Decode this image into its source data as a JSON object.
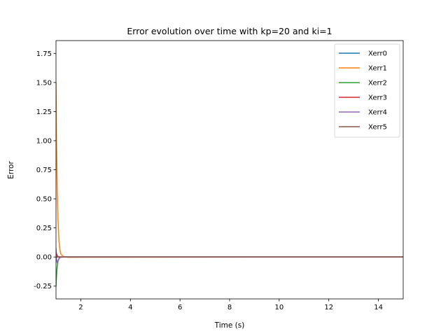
{
  "chart_data": {
    "type": "line",
    "title": "Error evolution over time with kp=20 and ki=1",
    "xlabel": "Time (s)",
    "ylabel": "Error",
    "xlim": [
      1.0,
      15.0
    ],
    "ylim": [
      -0.36,
      1.86
    ],
    "xticks": [
      2,
      4,
      6,
      8,
      10,
      12,
      14
    ],
    "yticks": [
      -0.25,
      0.0,
      0.25,
      0.5,
      0.75,
      1.0,
      1.25,
      1.5,
      1.75
    ],
    "grid": false,
    "legend_position": "top-right",
    "series": [
      {
        "name": "Xerr0",
        "color": "#1f77b4",
        "x": [
          1.0,
          1.02,
          1.05,
          1.08,
          1.12,
          1.16,
          1.2,
          1.3,
          1.5,
          2.0,
          15.0
        ],
        "y": [
          0.0,
          0.0,
          0.0,
          0.0,
          0.0,
          0.0,
          0.0,
          0.0,
          0.0,
          0.0,
          0.0
        ]
      },
      {
        "name": "Xerr1",
        "color": "#ff7f0e",
        "x": [
          1.0,
          1.02,
          1.05,
          1.08,
          1.12,
          1.16,
          1.2,
          1.3,
          1.5,
          2.0,
          15.0
        ],
        "y": [
          1.5,
          1.0,
          0.58,
          0.33,
          0.14,
          0.06,
          0.025,
          0.003,
          -0.003,
          -0.002,
          0.0
        ]
      },
      {
        "name": "Xerr2",
        "color": "#2ca02c",
        "x": [
          1.0,
          1.02,
          1.05,
          1.08,
          1.12,
          1.16,
          1.2,
          1.3,
          1.5,
          2.0,
          15.0
        ],
        "y": [
          -0.25,
          -0.16,
          -0.08,
          -0.04,
          -0.015,
          -0.006,
          -0.002,
          0.0,
          0.0,
          0.0,
          0.0
        ]
      },
      {
        "name": "Xerr3",
        "color": "#d62728",
        "x": [
          1.0,
          1.02,
          1.05,
          1.08,
          1.12,
          1.16,
          1.2,
          1.3,
          1.5,
          2.0,
          15.0
        ],
        "y": [
          0.05,
          0.03,
          0.012,
          0.005,
          0.001,
          0.0,
          0.0,
          0.0,
          0.0,
          0.0,
          0.0
        ]
      },
      {
        "name": "Xerr4",
        "color": "#9467bd",
        "x": [
          1.0,
          1.02,
          1.05,
          1.08,
          1.12,
          1.16,
          1.2,
          1.3,
          1.5,
          2.0,
          15.0
        ],
        "y": [
          0.07,
          -0.02,
          -0.05,
          -0.03,
          -0.012,
          -0.005,
          -0.002,
          0.0,
          0.0,
          0.0,
          0.0
        ]
      },
      {
        "name": "Xerr5",
        "color": "#8c564b",
        "x": [
          1.0,
          1.02,
          1.05,
          1.08,
          1.12,
          1.16,
          1.2,
          1.3,
          1.5,
          2.0,
          15.0
        ],
        "y": [
          0.0,
          0.0,
          0.0,
          0.0,
          0.0,
          0.0,
          0.0,
          0.0,
          0.0,
          0.0,
          0.0
        ]
      }
    ]
  }
}
